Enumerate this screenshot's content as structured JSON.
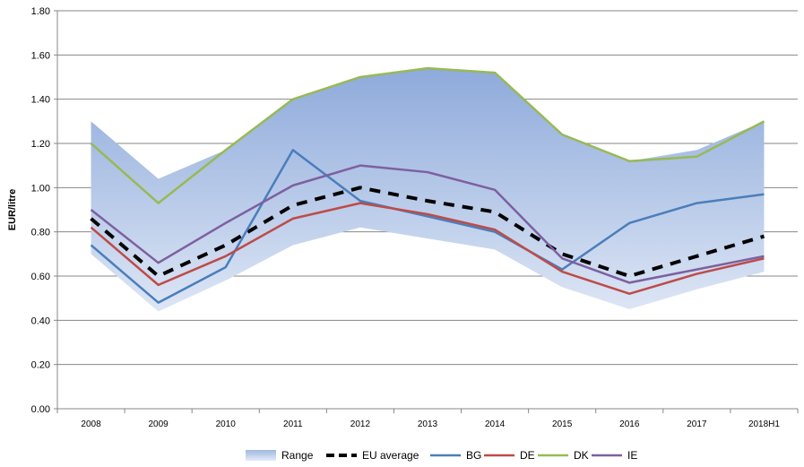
{
  "chart_data": {
    "type": "line",
    "title": "",
    "xlabel": "",
    "ylabel": "EUR/litre",
    "ylim": [
      0,
      1.8
    ],
    "yticks": [
      "0.00",
      "0.20",
      "0.40",
      "0.60",
      "0.80",
      "1.00",
      "1.20",
      "1.40",
      "1.60",
      "1.80"
    ],
    "grid": true,
    "legend_position": "bottom",
    "categories": [
      "2008",
      "2009",
      "2010",
      "2011",
      "2012",
      "2013",
      "2014",
      "2015",
      "2016",
      "2017",
      "2018H1"
    ],
    "range": {
      "name": "Range",
      "max": [
        1.3,
        1.04,
        1.17,
        1.4,
        1.5,
        1.54,
        1.52,
        1.24,
        1.12,
        1.17,
        1.3
      ],
      "min": [
        0.7,
        0.44,
        0.58,
        0.74,
        0.82,
        0.77,
        0.72,
        0.55,
        0.45,
        0.54,
        0.62
      ]
    },
    "series": [
      {
        "name": "EU average",
        "color": "#000000",
        "dashed": true,
        "values": [
          0.86,
          0.6,
          0.74,
          0.92,
          1.0,
          0.94,
          0.89,
          0.7,
          0.6,
          0.69,
          0.78
        ]
      },
      {
        "name": "BG",
        "color": "#4a7ebb",
        "values": [
          0.74,
          0.48,
          0.64,
          1.17,
          0.94,
          0.87,
          0.8,
          0.63,
          0.84,
          0.93,
          0.97
        ]
      },
      {
        "name": "DE",
        "color": "#be4b48",
        "values": [
          0.82,
          0.56,
          0.69,
          0.86,
          0.93,
          0.88,
          0.81,
          0.62,
          0.52,
          0.61,
          0.68
        ]
      },
      {
        "name": "DK",
        "color": "#98b954",
        "values": [
          1.2,
          0.93,
          1.17,
          1.4,
          1.5,
          1.54,
          1.52,
          1.24,
          1.12,
          1.14,
          1.3
        ]
      },
      {
        "name": "IE",
        "color": "#7d60a0",
        "values": [
          0.9,
          0.66,
          0.84,
          1.01,
          1.1,
          1.07,
          0.99,
          0.68,
          0.57,
          0.63,
          0.69
        ]
      }
    ]
  }
}
